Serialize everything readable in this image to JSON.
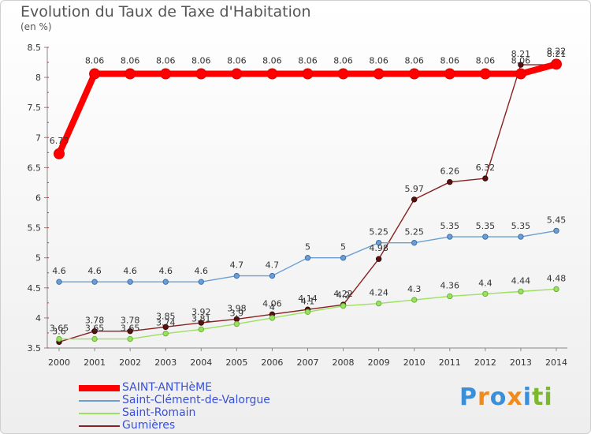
{
  "header": {
    "title": "Evolution du Taux de Taxe d'Habitation",
    "unit": "(en %)"
  },
  "brand": {
    "name": "Proxiti",
    "letters": [
      "P",
      "r",
      "o",
      "x",
      "i",
      "t",
      "i"
    ],
    "letter_colors": [
      "#3a8fd8",
      "#f08a1c",
      "#3a8fd8",
      "#f08a1c",
      "#3a8fd8",
      "#7ab82c",
      "#7ab82c"
    ]
  },
  "chart_data": {
    "type": "line",
    "x": [
      2000,
      2001,
      2002,
      2003,
      2004,
      2005,
      2006,
      2007,
      2008,
      2009,
      2010,
      2011,
      2012,
      2013,
      2014
    ],
    "ylim": [
      3.5,
      8.5
    ],
    "yticks": [
      "3.5",
      "4",
      "4.5",
      "5",
      "5.5",
      "6",
      "6.5",
      "7",
      "7.5",
      "8",
      "8.5"
    ],
    "grid": false,
    "legend_position": "bottom-left",
    "series": [
      {
        "name": "SAINT-ANTHèME",
        "color": "#ff0000",
        "values": [
          6.73,
          8.06,
          8.06,
          8.06,
          8.06,
          8.06,
          8.06,
          8.06,
          8.06,
          8.06,
          8.06,
          8.06,
          8.06,
          8.06,
          8.22
        ],
        "labels": [
          "6.73",
          "8.06",
          "8.06",
          "8.06",
          "8.06",
          "8.06",
          "8.06",
          "8.06",
          "8.06",
          "8.06",
          "8.06",
          "8.06",
          "8.06",
          "8.06",
          "8.22"
        ]
      },
      {
        "name": "Saint-Clément-de-Valorgue",
        "color": "#6b9fd4",
        "values": [
          4.6,
          4.6,
          4.6,
          4.6,
          4.6,
          4.7,
          4.7,
          5,
          5,
          5.25,
          5.25,
          5.35,
          5.35,
          5.35,
          5.45
        ],
        "labels": [
          "4.6",
          "4.6",
          "4.6",
          "4.6",
          "4.6",
          "4.7",
          "4.7",
          "5",
          "5",
          "5.25",
          "5.25",
          "5.35",
          "5.35",
          "5.35",
          "5.45"
        ]
      },
      {
        "name": "Saint-Romain",
        "color": "#9be05e",
        "values": [
          3.65,
          3.65,
          3.65,
          3.74,
          3.81,
          3.9,
          4,
          4.1,
          4.2,
          4.24,
          4.3,
          4.36,
          4.4,
          4.44,
          4.48
        ],
        "labels": [
          "3.65",
          "3.65",
          "3.65",
          "3.74",
          "3.81",
          "3.9",
          "4",
          "4.1",
          "4.2",
          "4.24",
          "4.3",
          "4.36",
          "4.4",
          "4.44",
          "4.48"
        ]
      },
      {
        "name": "Gumières",
        "color": "#8a2020",
        "values": [
          3.6,
          3.78,
          3.78,
          3.85,
          3.92,
          3.98,
          4.06,
          4.14,
          4.22,
          4.98,
          5.97,
          6.26,
          6.32,
          8.21,
          8.21
        ],
        "labels": [
          "3.6",
          "3.78",
          "3.78",
          "3.85",
          "3.92",
          "3.98",
          "4.06",
          "4.14",
          "4.22",
          "4.98",
          "5.97",
          "6.26",
          "6.32",
          "8.21",
          "8.21"
        ]
      }
    ]
  }
}
